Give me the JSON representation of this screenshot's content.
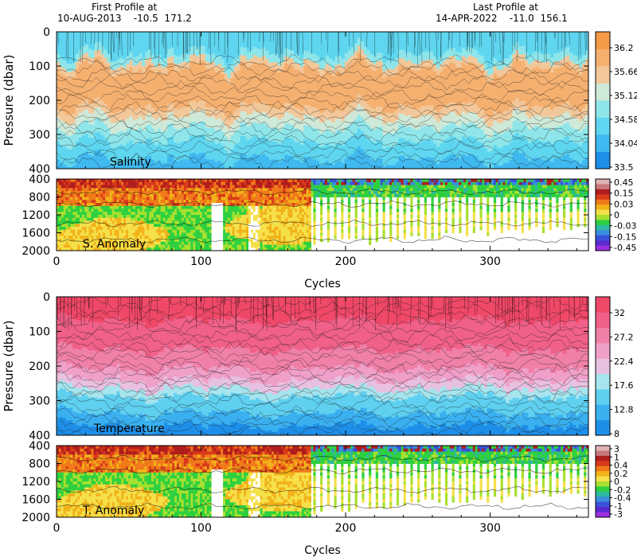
{
  "header": {
    "first_profile_title": "First Profile at",
    "first_profile_info": "10-AUG-2013    -10.5  171.2",
    "last_profile_title": "Last Profile at",
    "last_profile_info": "14-APR-2022    -11.0  156.1"
  },
  "chart_data": [
    {
      "type": "heatmap",
      "label": "Salinity",
      "ylabel": "Pressure (dbar)",
      "xlim": [
        0,
        368
      ],
      "ylim": [
        0,
        400
      ],
      "yticks": [
        0,
        100,
        200,
        300,
        400
      ],
      "xticks": [
        0,
        100,
        200,
        300
      ],
      "colorbar": {
        "ticks": [
          "36.2",
          "35.66",
          "35.12",
          "34.58",
          "34.04",
          "33.5"
        ],
        "range": [
          33.5,
          36.2
        ],
        "colors": [
          "#1e8fe8",
          "#40b8f0",
          "#5fd6f0",
          "#8fe6ea",
          "#cfe9d8",
          "#f2c89a",
          "#f5b070",
          "#f59a45"
        ]
      }
    },
    {
      "type": "heatmap",
      "label": "S. Anomaly",
      "xlim": [
        0,
        368
      ],
      "ylim": [
        400,
        2000
      ],
      "yticks": [
        400,
        800,
        1200,
        1600,
        2000
      ],
      "xticks": [
        0,
        100,
        200,
        300
      ],
      "xlabel": "Cycles",
      "colorbar": {
        "ticks": [
          "0.45",
          "0.15",
          "0.03",
          "0",
          "-0.03",
          "-0.15",
          "-0.45"
        ],
        "colors": [
          "#e0b2b4",
          "#c8787c",
          "#b01d1d",
          "#d83a1a",
          "#f07a1a",
          "#f2b21a",
          "#f5e04a",
          "#a8e030",
          "#2ed040",
          "#2eb8a0",
          "#3a8de0",
          "#3a50d8",
          "#5a2ad0",
          "#9a30e0"
        ]
      }
    },
    {
      "type": "heatmap",
      "label": "Temperature",
      "ylabel": "Pressure (dbar)",
      "xlim": [
        0,
        368
      ],
      "ylim": [
        0,
        400
      ],
      "yticks": [
        0,
        100,
        200,
        300,
        400
      ],
      "xticks": [
        0,
        100,
        200,
        300
      ],
      "colorbar": {
        "ticks": [
          "32",
          "27.2",
          "22.4",
          "17.6",
          "12.8",
          "8"
        ],
        "range": [
          8,
          32
        ],
        "colors": [
          "#1e8fe8",
          "#3ab0f0",
          "#5fd0f0",
          "#a6e4ee",
          "#e8c0e0",
          "#f0a0c8",
          "#f080a8",
          "#f06088",
          "#f04868"
        ]
      }
    },
    {
      "type": "heatmap",
      "label": "T. Anomaly",
      "xlim": [
        0,
        368
      ],
      "ylim": [
        400,
        2000
      ],
      "yticks": [
        400,
        800,
        1200,
        1600,
        2000
      ],
      "xticks": [
        0,
        100,
        200,
        300
      ],
      "xlabel": "Cycles",
      "colorbar": {
        "ticks": [
          "3",
          "1",
          "0.4",
          "0.2",
          "0",
          "-0.2",
          "-0.4",
          "-1",
          "-3"
        ],
        "colors": [
          "#e0b2b4",
          "#c8787c",
          "#b01d1d",
          "#d83a1a",
          "#f07a1a",
          "#f2b21a",
          "#f5e04a",
          "#a8e030",
          "#2ed040",
          "#2eb8a0",
          "#3a8de0",
          "#3a50d8",
          "#5a2ad0",
          "#9a30e0"
        ]
      }
    }
  ]
}
